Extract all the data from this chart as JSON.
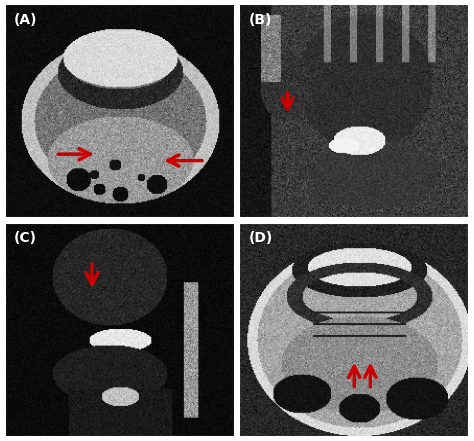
{
  "figure_size": [
    4.74,
    4.41
  ],
  "dpi": 100,
  "background_color": "#ffffff",
  "panel_labels": [
    "(A)",
    "(B)",
    "(C)",
    "(D)"
  ],
  "label_color": "#ffffff",
  "label_fontsize": 10,
  "label_fontweight": "bold",
  "border_color": "#ffffff",
  "border_linewidth": 1.5,
  "arrow_color": "#cc0000"
}
